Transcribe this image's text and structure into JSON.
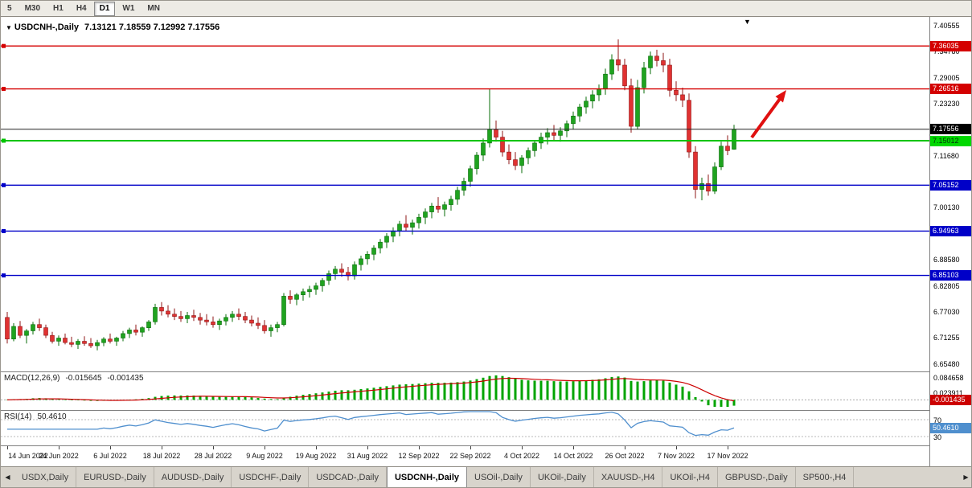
{
  "toolbar": {
    "timeframes": [
      {
        "label": "5",
        "active": false
      },
      {
        "label": "M30",
        "active": false
      },
      {
        "label": "H1",
        "active": false
      },
      {
        "label": "H4",
        "active": false
      },
      {
        "label": "D1",
        "active": true
      },
      {
        "label": "W1",
        "active": false
      },
      {
        "label": "MN",
        "active": false
      }
    ]
  },
  "chart": {
    "title": "USDCNH-,Daily",
    "ohlc": "7.13121 7.18559 7.12992 7.17556",
    "marker_glyph": "▼"
  },
  "chart_data": {
    "type": "candlestick",
    "symbol": "USDCNH-",
    "timeframe": "Daily",
    "ohlc_current": {
      "open": "7.13121",
      "high": "7.18559",
      "low": "7.12992",
      "close": "7.17556"
    },
    "style": {
      "up_color": "#1FA31F",
      "up_stroke": "#0A6E0A",
      "down_color": "#E03232",
      "down_stroke": "#8F1717"
    },
    "price_axis_ticks": [
      "7.40555",
      "7.34780",
      "7.29005",
      "7.23230",
      "7.11680",
      "7.00130",
      "6.88580",
      "6.82805",
      "6.77030",
      "6.71255",
      "6.65480"
    ],
    "levels": [
      {
        "value": 7.36035,
        "label": "7.36035",
        "color": "#D40000",
        "width": 1.4,
        "handle": true,
        "name": "resistance-line-1",
        "tag_bg": "#D40000",
        "tag_text": "#ffffff"
      },
      {
        "value": 7.26516,
        "label": "7.26516",
        "color": "#D40000",
        "width": 1.4,
        "handle": true,
        "name": "resistance-line-2",
        "tag_bg": "#D40000",
        "tag_text": "#ffffff"
      },
      {
        "value": 7.17556,
        "label": "7.17556",
        "color": "#222222",
        "width": 1,
        "handle": false,
        "name": "current-price-line",
        "tag_bg": "#000000",
        "tag_text": "#ffffff"
      },
      {
        "value": 7.15012,
        "label": "7.15012",
        "color": "#00C400",
        "width": 2,
        "handle": true,
        "name": "support-line-green",
        "tag_bg": "#00D800",
        "tag_text": "#00320a"
      },
      {
        "value": 7.05152,
        "label": "7.05152",
        "color": "#0000C8",
        "width": 1.4,
        "handle": true,
        "name": "support-line-1",
        "tag_bg": "#0000C8",
        "tag_text": "#ffffff"
      },
      {
        "value": 6.94963,
        "label": "6.94963",
        "color": "#0000C8",
        "width": 1.4,
        "handle": true,
        "name": "support-line-2",
        "tag_bg": "#0000C8",
        "tag_text": "#ffffff"
      },
      {
        "value": 6.85103,
        "label": "6.85103",
        "color": "#0000C8",
        "width": 1.4,
        "handle": true,
        "name": "support-line-3",
        "tag_bg": "#0000C8",
        "tag_text": "#ffffff"
      }
    ],
    "arrow": {
      "color": "#E01010",
      "direction": "up-right"
    },
    "date_ticks": [
      {
        "i": 0,
        "label": "14 Jun 2022"
      },
      {
        "i": 8,
        "label": "24 Jun 2022"
      },
      {
        "i": 16,
        "label": "6 Jul 2022"
      },
      {
        "i": 24,
        "label": "18 Jul 2022"
      },
      {
        "i": 32,
        "label": "28 Jul 2022"
      },
      {
        "i": 40,
        "label": "9 Aug 2022"
      },
      {
        "i": 48,
        "label": "19 Aug 2022"
      },
      {
        "i": 56,
        "label": "31 Aug 2022"
      },
      {
        "i": 64,
        "label": "12 Sep 2022"
      },
      {
        "i": 72,
        "label": "22 Sep 2022"
      },
      {
        "i": 80,
        "label": "4 Oct 2022"
      },
      {
        "i": 88,
        "label": "14 Oct 2022"
      },
      {
        "i": 96,
        "label": "26 Oct 2022"
      },
      {
        "i": 104,
        "label": "7 Nov 2022"
      },
      {
        "i": 112,
        "label": "17 Nov 2022"
      }
    ],
    "candles": [
      [
        6.758,
        6.77,
        6.7,
        6.71
      ],
      [
        6.71,
        6.745,
        6.705,
        6.738
      ],
      [
        6.738,
        6.75,
        6.712,
        6.718
      ],
      [
        6.718,
        6.732,
        6.7,
        6.728
      ],
      [
        6.728,
        6.748,
        6.72,
        6.742
      ],
      [
        6.742,
        6.755,
        6.728,
        6.735
      ],
      [
        6.735,
        6.742,
        6.712,
        6.718
      ],
      [
        6.718,
        6.726,
        6.7,
        6.705
      ],
      [
        6.705,
        6.718,
        6.695,
        6.712
      ],
      [
        6.712,
        6.722,
        6.698,
        6.702
      ],
      [
        6.702,
        6.715,
        6.692,
        6.698
      ],
      [
        6.698,
        6.71,
        6.688,
        6.705
      ],
      [
        6.705,
        6.716,
        6.695,
        6.7
      ],
      [
        6.7,
        6.712,
        6.69,
        6.695
      ],
      [
        6.695,
        6.708,
        6.685,
        6.702
      ],
      [
        6.702,
        6.714,
        6.694,
        6.71
      ],
      [
        6.71,
        6.722,
        6.7,
        6.705
      ],
      [
        6.705,
        6.715,
        6.695,
        6.712
      ],
      [
        6.712,
        6.728,
        6.705,
        6.722
      ],
      [
        6.722,
        6.735,
        6.712,
        6.73
      ],
      [
        6.73,
        6.742,
        6.718,
        6.725
      ],
      [
        6.725,
        6.738,
        6.715,
        6.735
      ],
      [
        6.735,
        6.752,
        6.728,
        6.748
      ],
      [
        6.748,
        6.788,
        6.742,
        6.78
      ],
      [
        6.78,
        6.792,
        6.762,
        6.772
      ],
      [
        6.772,
        6.785,
        6.758,
        6.765
      ],
      [
        6.765,
        6.778,
        6.752,
        6.76
      ],
      [
        6.76,
        6.772,
        6.748,
        6.755
      ],
      [
        6.755,
        6.77,
        6.745,
        6.762
      ],
      [
        6.762,
        6.775,
        6.75,
        6.758
      ],
      [
        6.758,
        6.768,
        6.742,
        6.752
      ],
      [
        6.752,
        6.765,
        6.74,
        6.748
      ],
      [
        6.748,
        6.76,
        6.735,
        6.742
      ],
      [
        6.742,
        6.755,
        6.73,
        6.75
      ],
      [
        6.75,
        6.765,
        6.74,
        6.758
      ],
      [
        6.758,
        6.772,
        6.748,
        6.765
      ],
      [
        6.765,
        6.778,
        6.752,
        6.76
      ],
      [
        6.76,
        6.77,
        6.745,
        6.752
      ],
      [
        6.752,
        6.762,
        6.738,
        6.745
      ],
      [
        6.745,
        6.758,
        6.732,
        6.74
      ],
      [
        6.74,
        6.752,
        6.722,
        6.728
      ],
      [
        6.728,
        6.742,
        6.715,
        6.735
      ],
      [
        6.735,
        6.748,
        6.725,
        6.742
      ],
      [
        6.742,
        6.812,
        6.738,
        6.805
      ],
      [
        6.805,
        6.818,
        6.788,
        6.798
      ],
      [
        6.798,
        6.812,
        6.785,
        6.808
      ],
      [
        6.808,
        6.822,
        6.795,
        6.815
      ],
      [
        6.815,
        6.828,
        6.802,
        6.82
      ],
      [
        6.82,
        6.835,
        6.808,
        6.828
      ],
      [
        6.828,
        6.845,
        6.815,
        6.84
      ],
      [
        6.84,
        6.862,
        6.83,
        6.855
      ],
      [
        6.855,
        6.872,
        6.842,
        6.865
      ],
      [
        6.865,
        6.878,
        6.848,
        6.858
      ],
      [
        6.858,
        6.87,
        6.84,
        6.85
      ],
      [
        6.85,
        6.882,
        6.842,
        6.875
      ],
      [
        6.875,
        6.895,
        6.862,
        6.888
      ],
      [
        6.888,
        6.905,
        6.875,
        6.898
      ],
      [
        6.898,
        6.918,
        6.885,
        6.912
      ],
      [
        6.912,
        6.932,
        6.9,
        6.925
      ],
      [
        6.925,
        6.945,
        6.912,
        6.938
      ],
      [
        6.938,
        6.958,
        6.925,
        6.95
      ],
      [
        6.95,
        6.972,
        6.938,
        6.965
      ],
      [
        6.965,
        6.985,
        6.95,
        6.958
      ],
      [
        6.958,
        6.975,
        6.942,
        6.968
      ],
      [
        6.968,
        6.988,
        6.955,
        6.98
      ],
      [
        6.98,
        7.0,
        6.965,
        6.992
      ],
      [
        6.992,
        7.012,
        6.978,
        7.005
      ],
      [
        7.005,
        7.025,
        6.99,
        6.998
      ],
      [
        6.998,
        7.015,
        6.982,
        7.008
      ],
      [
        7.008,
        7.028,
        6.995,
        7.02
      ],
      [
        7.02,
        7.048,
        7.008,
        7.04
      ],
      [
        7.04,
        7.068,
        7.028,
        7.06
      ],
      [
        7.06,
        7.095,
        7.048,
        7.088
      ],
      [
        7.088,
        7.125,
        7.075,
        7.118
      ],
      [
        7.118,
        7.155,
        7.105,
        7.145
      ],
      [
        7.145,
        7.265,
        7.135,
        7.175
      ],
      [
        7.175,
        7.195,
        7.148,
        7.158
      ],
      [
        7.158,
        7.172,
        7.115,
        7.125
      ],
      [
        7.125,
        7.142,
        7.098,
        7.108
      ],
      [
        7.108,
        7.125,
        7.085,
        7.095
      ],
      [
        7.095,
        7.118,
        7.078,
        7.112
      ],
      [
        7.112,
        7.135,
        7.098,
        7.128
      ],
      [
        7.128,
        7.152,
        7.115,
        7.145
      ],
      [
        7.145,
        7.168,
        7.132,
        7.158
      ],
      [
        7.158,
        7.178,
        7.142,
        7.168
      ],
      [
        7.168,
        7.185,
        7.152,
        7.162
      ],
      [
        7.162,
        7.18,
        7.148,
        7.172
      ],
      [
        7.172,
        7.195,
        7.158,
        7.188
      ],
      [
        7.188,
        7.215,
        7.175,
        7.205
      ],
      [
        7.205,
        7.232,
        7.192,
        7.225
      ],
      [
        7.225,
        7.248,
        7.21,
        7.238
      ],
      [
        7.238,
        7.262,
        7.222,
        7.252
      ],
      [
        7.252,
        7.275,
        7.238,
        7.265
      ],
      [
        7.265,
        7.31,
        7.252,
        7.298
      ],
      [
        7.298,
        7.342,
        7.285,
        7.33
      ],
      [
        7.33,
        7.375,
        7.305,
        7.318
      ],
      [
        7.318,
        7.332,
        7.262,
        7.272
      ],
      [
        7.272,
        7.288,
        7.168,
        7.182
      ],
      [
        7.182,
        7.285,
        7.175,
        7.268
      ],
      [
        7.268,
        7.325,
        7.255,
        7.312
      ],
      [
        7.312,
        7.348,
        7.298,
        7.338
      ],
      [
        7.338,
        7.352,
        7.315,
        7.328
      ],
      [
        7.328,
        7.345,
        7.302,
        7.318
      ],
      [
        7.318,
        7.332,
        7.248,
        7.262
      ],
      [
        7.262,
        7.282,
        7.238,
        7.252
      ],
      [
        7.252,
        7.268,
        7.225,
        7.24
      ],
      [
        7.24,
        7.255,
        7.112,
        7.125
      ],
      [
        7.125,
        7.138,
        7.022,
        7.042
      ],
      [
        7.042,
        7.068,
        7.018,
        7.055
      ],
      [
        7.055,
        7.075,
        7.028,
        7.038
      ],
      [
        7.038,
        7.102,
        7.032,
        7.092
      ],
      [
        7.092,
        7.148,
        7.085,
        7.138
      ],
      [
        7.138,
        7.162,
        7.118,
        7.128
      ],
      [
        7.13121,
        7.18559,
        7.12992,
        7.17556
      ]
    ]
  },
  "macd": {
    "label": "MACD(12,26,9)",
    "main_value": "-0.015645",
    "signal_value": "-0.001435",
    "axis_labels": [
      "0.084658",
      "0.023911"
    ],
    "tag": "-0.001435",
    "hist_color": "#00A400",
    "signal_color": "#CC0000"
  },
  "rsi": {
    "label": "RSI(14)",
    "value": "50.4610",
    "levels": [
      70,
      30
    ],
    "line_color": "#4F8FCE"
  },
  "tabbar": {
    "left_arrow": "◀",
    "right_arrow": "▶",
    "tabs": [
      {
        "label": "USDX,Daily",
        "active": false
      },
      {
        "label": "EURUSD-,Daily",
        "active": false
      },
      {
        "label": "AUDUSD-,Daily",
        "active": false
      },
      {
        "label": "USDCHF-,Daily",
        "active": false
      },
      {
        "label": "USDCAD-,Daily",
        "active": false
      },
      {
        "label": "USDCNH-,Daily",
        "active": true
      },
      {
        "label": "USOil-,Daily",
        "active": false
      },
      {
        "label": "UKOil-,Daily",
        "active": false
      },
      {
        "label": "XAUUSD-,H4",
        "active": false
      },
      {
        "label": "UKOil-,H4",
        "active": false
      },
      {
        "label": "GBPUSD-,Daily",
        "active": false
      },
      {
        "label": "SP500-,H4",
        "active": false
      }
    ]
  }
}
